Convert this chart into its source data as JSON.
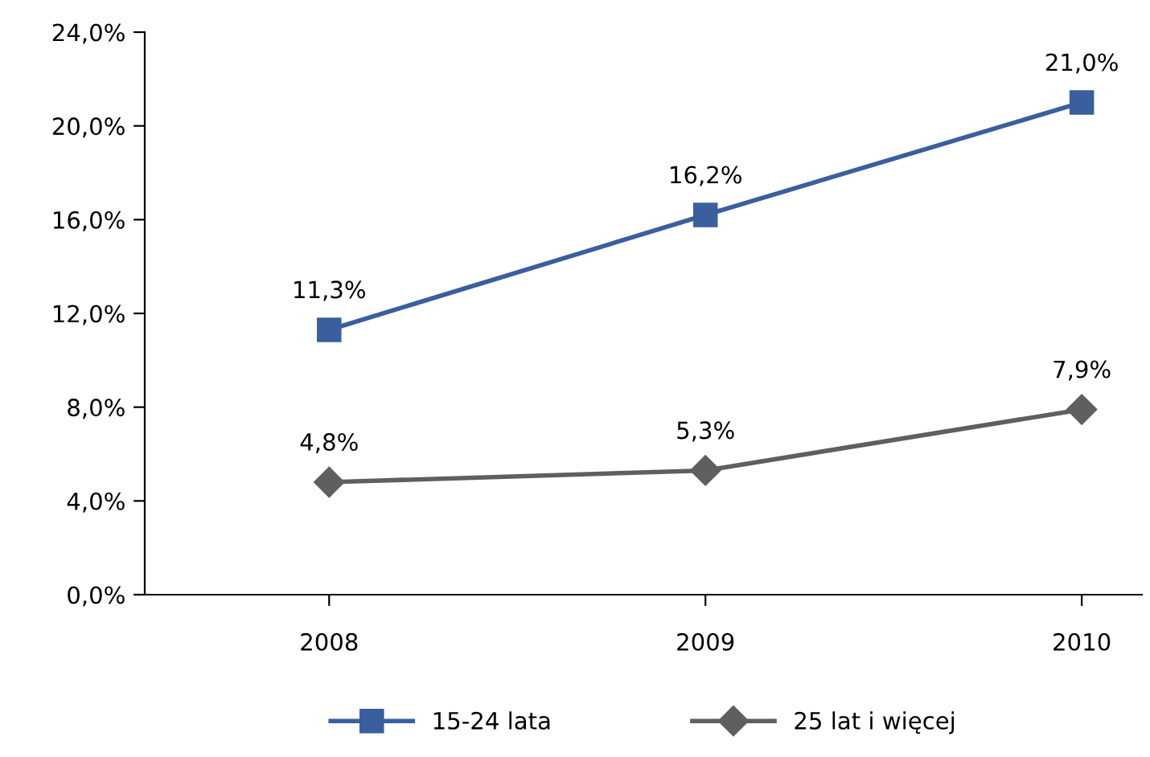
{
  "chart_data": {
    "type": "line",
    "categories": [
      "2008",
      "2009",
      "2010"
    ],
    "series": [
      {
        "name": "15-24 lata",
        "color": "#3a5f9e",
        "marker": "square",
        "values": [
          11.3,
          16.2,
          21.0
        ],
        "value_labels": [
          "11,3%",
          "16,2%",
          "21,0%"
        ]
      },
      {
        "name": "25 lat i więcej",
        "color": "#5f5f5f",
        "marker": "diamond",
        "values": [
          4.8,
          5.3,
          7.9
        ],
        "value_labels": [
          "4,8%",
          "5,3%",
          "7,9%"
        ]
      }
    ],
    "ylim": [
      0,
      24
    ],
    "yticks": [
      {
        "value": 0,
        "label": "0,0%"
      },
      {
        "value": 4,
        "label": "4,0%"
      },
      {
        "value": 8,
        "label": "8,0%"
      },
      {
        "value": 12,
        "label": "12,0%"
      },
      {
        "value": 16,
        "label": "16,0%"
      },
      {
        "value": 20,
        "label": "20,0%"
      },
      {
        "value": 24,
        "label": "24,0%"
      }
    ],
    "grid": false,
    "legend": "bottom",
    "line_style": "solid"
  }
}
